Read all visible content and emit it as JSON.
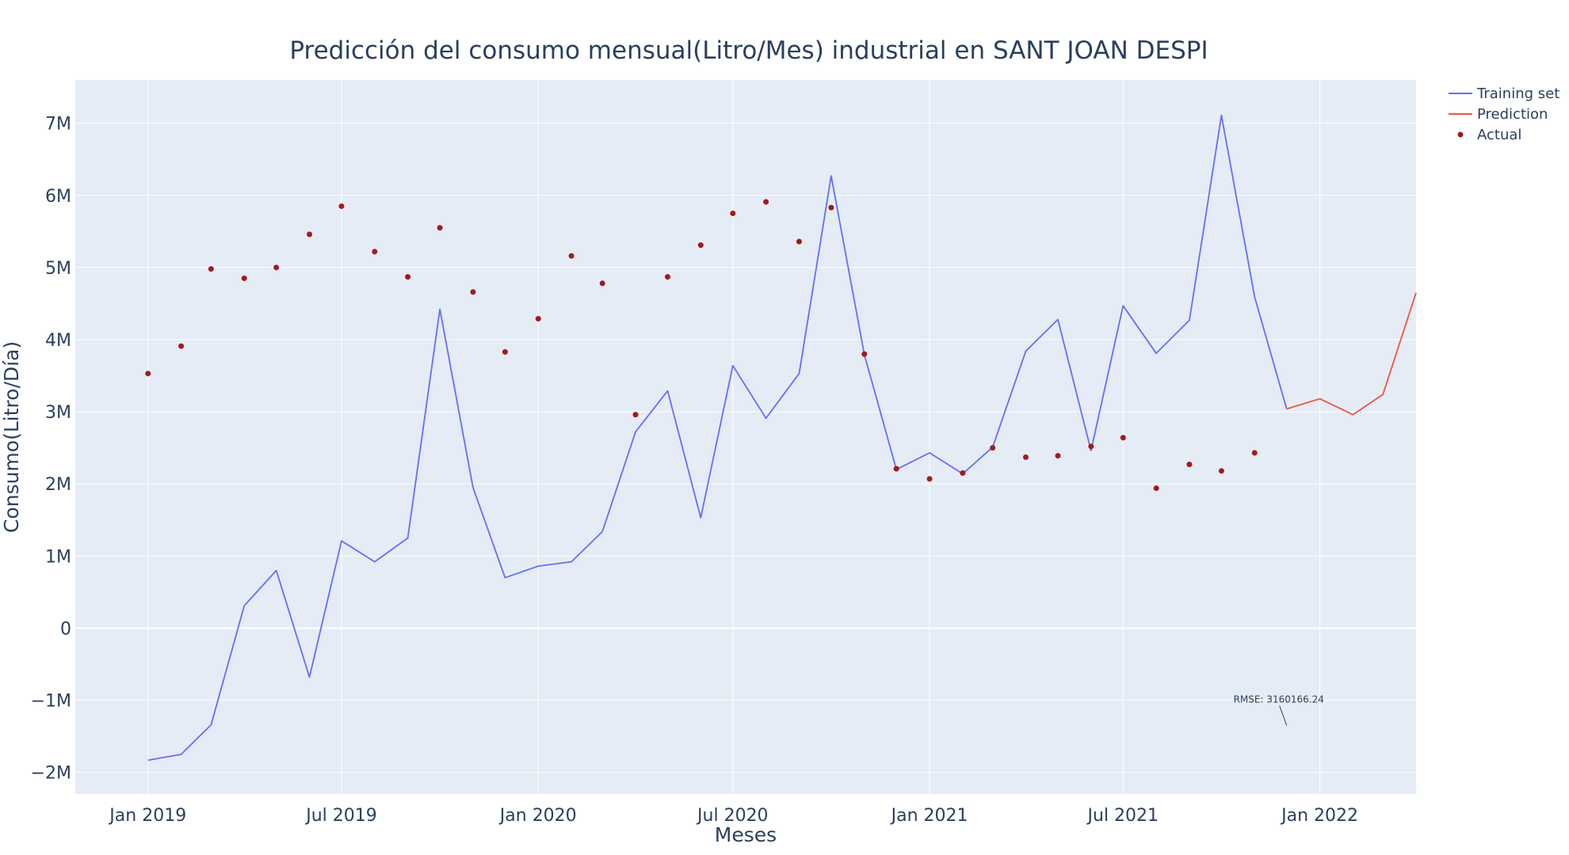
{
  "chart_data": {
    "type": "line",
    "title": "Predicción del consumo mensual(Litro/Mes) industrial en SANT JOAN DESPI",
    "xlabel": "Meses",
    "ylabel": "Consumo(Litro/Día)",
    "x_tick_labels": [
      "Jan 2019",
      "Jul 2019",
      "Jan 2020",
      "Jul 2020",
      "Jan 2021",
      "Jul 2021",
      "Jan 2022"
    ],
    "x_tick_dates": [
      "2019-01-01",
      "2019-07-01",
      "2020-01-01",
      "2020-07-01",
      "2021-01-01",
      "2021-07-01",
      "2022-01-01"
    ],
    "x_range": [
      "2018-10-25",
      "2022-04-01"
    ],
    "y_ticks": [
      -2000000,
      -1000000,
      0,
      1000000,
      2000000,
      3000000,
      4000000,
      5000000,
      6000000,
      7000000
    ],
    "y_tick_labels": [
      "−2M",
      "−1M",
      "0",
      "1M",
      "2M",
      "3M",
      "4M",
      "5M",
      "6M",
      "7M"
    ],
    "ylim": [
      -2300000,
      7600000
    ],
    "grid": true,
    "legend_position": "top-right",
    "series": [
      {
        "name": "Training set",
        "mode": "line",
        "color": "#636efa",
        "x": [
          "2019-01-01",
          "2019-02-01",
          "2019-03-01",
          "2019-04-01",
          "2019-05-01",
          "2019-06-01",
          "2019-07-01",
          "2019-08-01",
          "2019-09-01",
          "2019-10-01",
          "2019-11-01",
          "2019-12-01",
          "2020-01-01",
          "2020-02-01",
          "2020-03-01",
          "2020-04-01",
          "2020-05-01",
          "2020-06-01",
          "2020-07-01",
          "2020-08-01",
          "2020-09-01",
          "2020-10-01",
          "2020-11-01",
          "2020-12-01",
          "2021-01-01",
          "2021-02-01",
          "2021-03-01",
          "2021-04-01",
          "2021-05-01",
          "2021-06-01",
          "2021-07-01",
          "2021-08-01",
          "2021-09-01",
          "2021-10-01",
          "2021-11-01",
          "2021-12-01"
        ],
        "y": [
          -1830000,
          -1750000,
          -1340000,
          310000,
          800000,
          -680000,
          1210000,
          920000,
          1250000,
          4420000,
          1950000,
          700000,
          860000,
          920000,
          1340000,
          2720000,
          3290000,
          1530000,
          3640000,
          2910000,
          3530000,
          6270000,
          3790000,
          2200000,
          2430000,
          2140000,
          2510000,
          3840000,
          4280000,
          2460000,
          4470000,
          3810000,
          4270000,
          7110000,
          4590000,
          3040000
        ]
      },
      {
        "name": "Prediction",
        "mode": "line",
        "color": "#ef553b",
        "x": [
          "2021-12-01",
          "2022-01-01",
          "2022-02-01",
          "2022-03-01",
          "2022-04-01"
        ],
        "y": [
          3040000,
          3180000,
          2960000,
          3240000,
          4650000
        ]
      },
      {
        "name": "Actual",
        "mode": "markers",
        "color": "#a31a1a",
        "x": [
          "2019-01-01",
          "2019-02-01",
          "2019-03-01",
          "2019-04-01",
          "2019-05-01",
          "2019-06-01",
          "2019-07-01",
          "2019-08-01",
          "2019-09-01",
          "2019-10-01",
          "2019-11-01",
          "2019-12-01",
          "2020-01-01",
          "2020-02-01",
          "2020-03-01",
          "2020-04-01",
          "2020-05-01",
          "2020-06-01",
          "2020-07-01",
          "2020-08-01",
          "2020-09-01",
          "2020-10-01",
          "2020-11-01",
          "2020-12-01",
          "2021-01-01",
          "2021-02-01",
          "2021-03-01",
          "2021-04-01",
          "2021-05-01",
          "2021-06-01",
          "2021-07-01",
          "2021-08-01",
          "2021-09-01",
          "2021-10-01",
          "2021-11-01"
        ],
        "y": [
          3530000,
          3910000,
          4980000,
          4850000,
          5000000,
          5460000,
          5850000,
          5220000,
          4870000,
          5550000,
          4660000,
          3830000,
          4290000,
          5160000,
          4780000,
          2960000,
          4870000,
          5310000,
          5750000,
          5910000,
          5360000,
          5830000,
          3800000,
          2210000,
          2070000,
          2150000,
          2500000,
          2370000,
          2390000,
          2520000,
          2640000,
          1940000,
          2270000,
          2180000,
          2430000
        ]
      }
    ],
    "annotation": {
      "text": "RMSE: 3160166.24",
      "x": "2021-12-01",
      "y": -1350000
    }
  }
}
